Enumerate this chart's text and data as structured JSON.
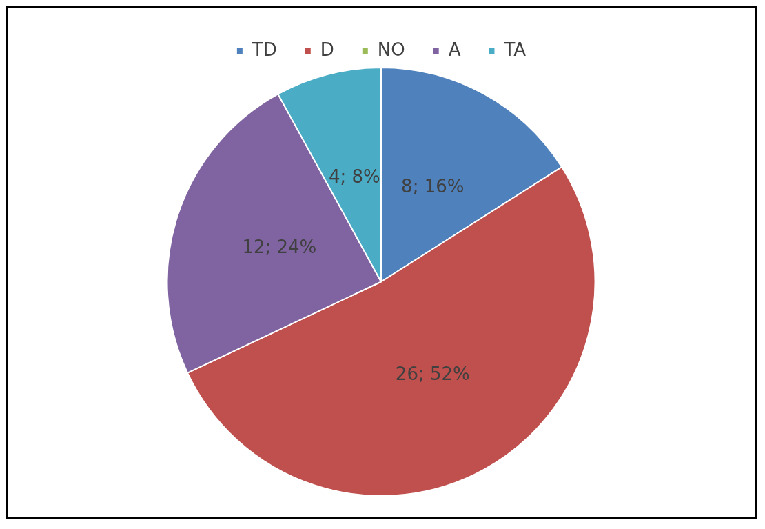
{
  "chart_data": {
    "type": "pie",
    "categories": [
      "TD",
      "D",
      "NO",
      "A",
      "TA"
    ],
    "values": [
      8,
      26,
      0,
      12,
      4
    ],
    "colors": [
      "#4f81bd",
      "#c0504d",
      "#9bbb59",
      "#8064a2",
      "#4bacc6"
    ],
    "value_labels": [
      "8; 16%",
      "26; 52%",
      null,
      "12; 24%",
      "4; 8%"
    ],
    "legend": "top"
  }
}
